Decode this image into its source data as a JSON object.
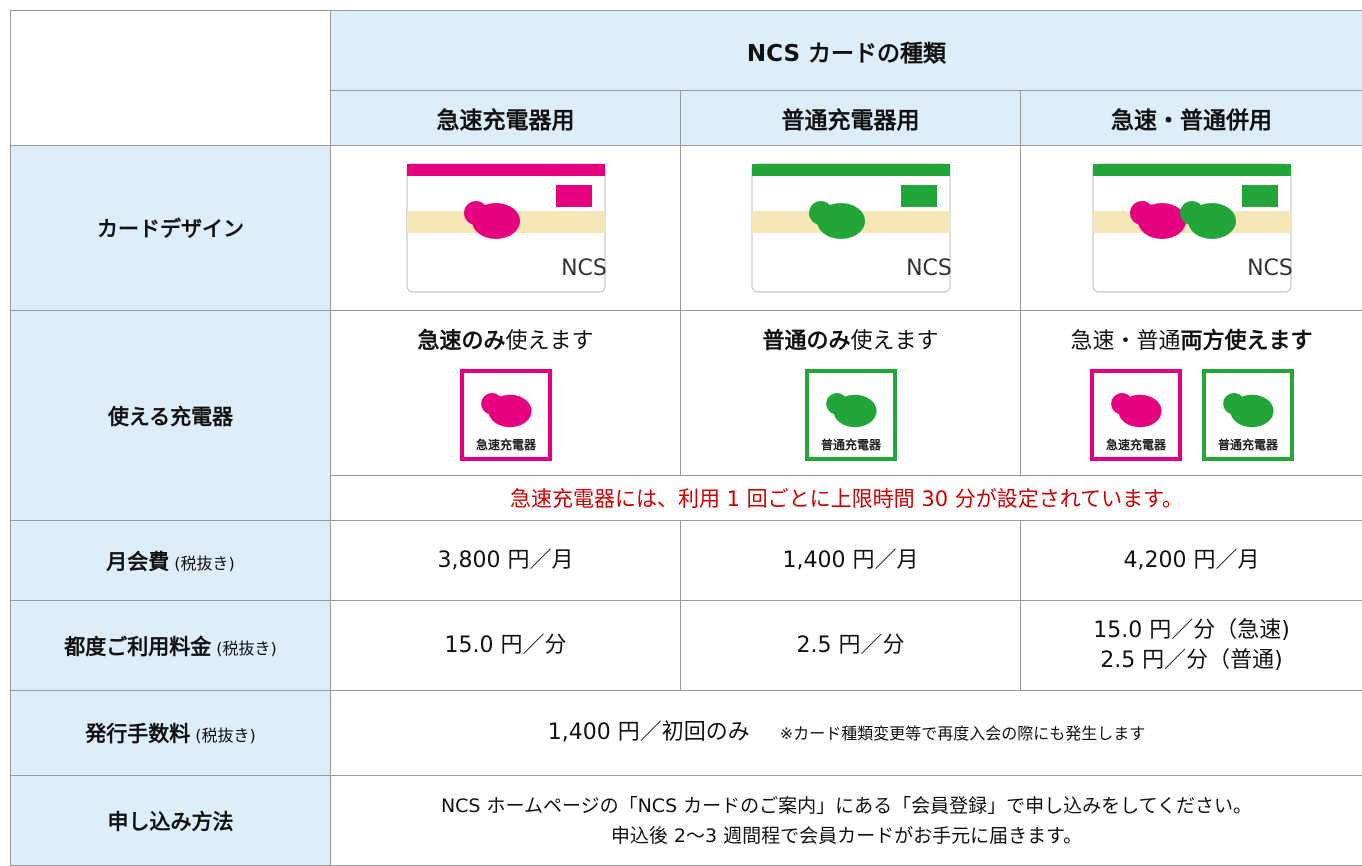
{
  "header": {
    "group": "NCS カードの種類",
    "columns": [
      "急速充電器用",
      "普通充電器用",
      "急速・普通併用"
    ]
  },
  "design": {
    "label": "カードデザイン",
    "cards": [
      "NCS",
      "NCS",
      "NCS"
    ]
  },
  "chargers": {
    "label": "使える充電器",
    "usage": [
      [
        {
          "text": "急速のみ",
          "bold": true
        },
        {
          "text": "使えます",
          "bold": false
        }
      ],
      [
        {
          "text": "普通のみ",
          "bold": true
        },
        {
          "text": "使えます",
          "bold": false
        }
      ],
      [
        {
          "text": "急速・普通",
          "bold": false
        },
        {
          "text": "両方使えます",
          "bold": true
        }
      ]
    ],
    "badges": [
      [
        "急速充電器"
      ],
      [
        "普通充電器"
      ],
      [
        "急速充電器",
        "普通充電器"
      ]
    ],
    "note": "急速充電器には、利用 1 回ごとに上限時間 30 分が設定されています。"
  },
  "monthly": {
    "label": "月会費",
    "tax": "(税抜き)",
    "values": [
      [
        "3,800 円／月"
      ],
      [
        "1,400 円／月"
      ],
      [
        "4,200 円／月"
      ]
    ]
  },
  "usage_fee": {
    "label": "都度ご利用料金",
    "tax": "(税抜き)",
    "values": [
      [
        "15.0 円／分"
      ],
      [
        "2.5 円／分"
      ],
      [
        "15.0 円／分（急速)",
        "2.5 円／分（普通)"
      ]
    ]
  },
  "issue_fee": {
    "label": "発行手数料",
    "tax": "(税抜き)",
    "value": "1,400 円／初回のみ",
    "note": "※カード種類変更等で再度入会の際にも発生します"
  },
  "apply": {
    "label": "申し込み方法",
    "lines": [
      "NCS ホームページの「NCS カードのご案内」にある「会員登録」で申し込みをしてください。",
      "申込後 2～3 週間程で会員カードがお手元に届きます。"
    ]
  }
}
